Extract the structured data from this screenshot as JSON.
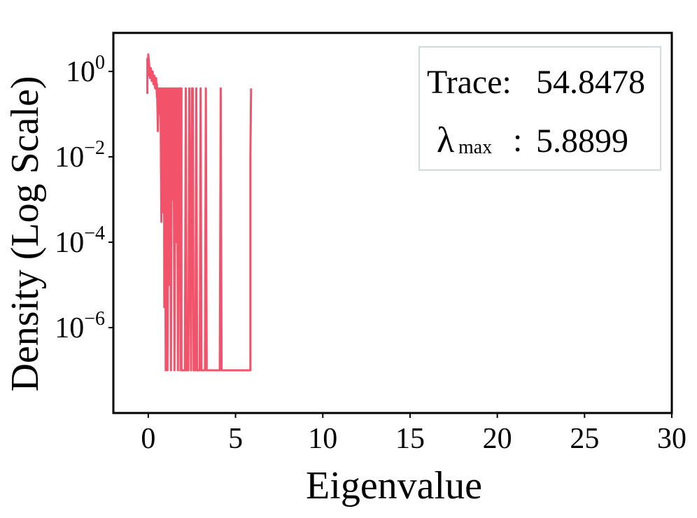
{
  "chart_data": {
    "type": "line",
    "title": "",
    "xlabel": "Eigenvalue",
    "ylabel": "Density (Log Scale)",
    "xlim": [
      -2,
      30
    ],
    "ylim": [
      1e-08,
      8
    ],
    "yscale": "log",
    "grid": false,
    "line_color": "#F2526A",
    "x_ticks": [
      0,
      5,
      10,
      15,
      20,
      25,
      30
    ],
    "x_tick_labels": [
      "0",
      "5",
      "10",
      "15",
      "20",
      "25",
      "30"
    ],
    "y_ticks": [
      {
        "value": 1,
        "base": "10",
        "exp": "0"
      },
      {
        "value": 0.01,
        "base": "10",
        "exp": "−2"
      },
      {
        "value": 0.0001,
        "base": "10",
        "exp": "−4"
      },
      {
        "value": 1e-06,
        "base": "10",
        "exp": "−6"
      }
    ],
    "series": [
      {
        "values": [
          [
            -0.05,
            0.3
          ],
          [
            -0.05,
            2.0
          ],
          [
            0.0,
            0.8
          ],
          [
            0.0,
            2.5
          ],
          [
            0.05,
            1.5
          ],
          [
            0.1,
            0.7
          ],
          [
            0.15,
            1.2
          ],
          [
            0.2,
            0.6
          ],
          [
            0.25,
            1.0
          ],
          [
            0.3,
            0.5
          ],
          [
            0.35,
            0.8
          ],
          [
            0.4,
            0.4
          ],
          [
            0.45,
            0.7
          ],
          [
            0.5,
            0.25
          ],
          [
            0.5,
            0.5
          ],
          [
            0.55,
            0.04
          ],
          [
            0.6,
            0.4
          ],
          [
            0.65,
            0.1
          ],
          [
            0.7,
            0.4
          ],
          [
            0.75,
            0.0003
          ],
          [
            0.8,
            0.4
          ],
          [
            0.85,
            0.0005
          ],
          [
            0.9,
            0.4
          ],
          [
            0.92,
            3e-06
          ],
          [
            0.95,
            0.4
          ],
          [
            1.0,
            1e-07
          ],
          [
            1.05,
            0.4
          ],
          [
            1.1,
            1e-07
          ],
          [
            1.15,
            0.4
          ],
          [
            1.2,
            1e-05
          ],
          [
            1.25,
            0.4
          ],
          [
            1.3,
            1e-07
          ],
          [
            1.35,
            0.4
          ],
          [
            1.4,
            0.001
          ],
          [
            1.45,
            0.4
          ],
          [
            1.5,
            1e-07
          ],
          [
            1.55,
            0.4
          ],
          [
            1.6,
            0.0001
          ],
          [
            1.65,
            0.4
          ],
          [
            1.7,
            1e-07
          ],
          [
            1.75,
            0.4
          ],
          [
            1.8,
            0.4
          ],
          [
            1.85,
            1e-07
          ],
          [
            1.9,
            0.4
          ],
          [
            1.9,
            1e-07
          ],
          [
            2.1,
            1e-07
          ],
          [
            2.15,
            0.4
          ],
          [
            2.2,
            1e-07
          ],
          [
            2.3,
            1e-07
          ],
          [
            2.35,
            0.4
          ],
          [
            2.45,
            1e-07
          ],
          [
            2.5,
            0.4
          ],
          [
            2.55,
            0.4
          ],
          [
            2.6,
            1e-07
          ],
          [
            2.7,
            1e-07
          ],
          [
            2.75,
            0.4
          ],
          [
            2.8,
            1e-07
          ],
          [
            2.95,
            1e-07
          ],
          [
            3.0,
            0.4
          ],
          [
            3.05,
            1e-07
          ],
          [
            3.25,
            1e-07
          ],
          [
            3.3,
            0.4
          ],
          [
            3.35,
            1e-07
          ],
          [
            4.1,
            1e-07
          ],
          [
            4.15,
            0.4
          ],
          [
            4.2,
            1e-07
          ],
          [
            5.7,
            1e-07
          ],
          [
            5.75,
            1e-07
          ],
          [
            5.85,
            1e-07
          ],
          [
            5.85,
            0.01
          ],
          [
            5.89,
            0.4
          ]
        ]
      }
    ],
    "legend": {
      "position": "top-right",
      "trace_label": "Trace:",
      "trace_value": "54.8478",
      "lambda_symbol": "λ",
      "lambda_subscript": "max",
      "lambda_separator": ":",
      "lambda_value": "5.8899"
    }
  }
}
